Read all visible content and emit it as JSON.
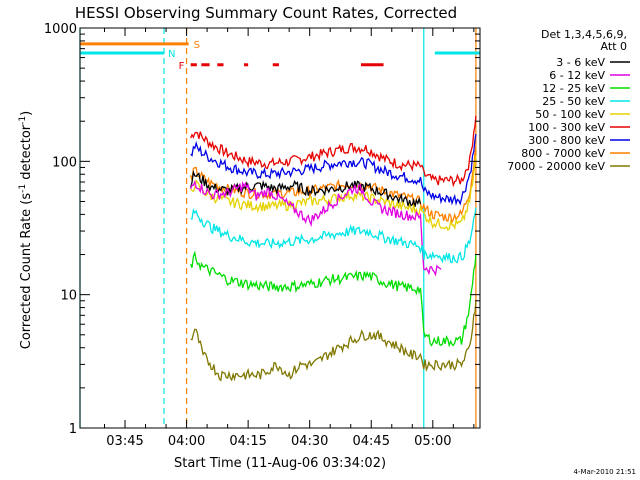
{
  "chart_data": {
    "type": "line",
    "title": "HESSI Observing Summary Count Rates, Corrected",
    "xlabel": "Start Time (11-Aug-06 03:34:02)",
    "ylabel_main": "Corrected Count Rate (s",
    "ylabel_sup1": "-1",
    "ylabel_mid": " detector",
    "ylabel_sup2": "-1",
    "ylabel_end": ")",
    "yscale": "log",
    "ylim": [
      1,
      1000
    ],
    "xlim_minutes": [
      34.03,
      131.5
    ],
    "x_ticks": [
      {
        "m": 45,
        "label": "03:45"
      },
      {
        "m": 60,
        "label": "04:00"
      },
      {
        "m": 75,
        "label": "04:15"
      },
      {
        "m": 90,
        "label": "04:30"
      },
      {
        "m": 105,
        "label": "04:45"
      },
      {
        "m": 120,
        "label": "05:00"
      }
    ],
    "y_ticks": [
      {
        "v": 1,
        "label": "1"
      },
      {
        "v": 10,
        "label": "10"
      },
      {
        "v": 100,
        "label": "100"
      },
      {
        "v": 1000,
        "label": "1000"
      }
    ],
    "legend": {
      "header1": "Det 1,3,4,5,6,9,",
      "header2": "Att 0",
      "entries": [
        {
          "label": "3 - 6 keV",
          "color": "#000000"
        },
        {
          "label": "6 - 12 keV",
          "color": "#e000e0"
        },
        {
          "label": "12 - 25 keV",
          "color": "#00dd00"
        },
        {
          "label": "25 - 50 keV",
          "color": "#00e6e6"
        },
        {
          "label": "50 - 100 keV",
          "color": "#e6d200"
        },
        {
          "label": "100 - 300 keV",
          "color": "#e60000"
        },
        {
          "label": "300 - 800 keV",
          "color": "#0000e6"
        },
        {
          "label": "800 - 7000 keV",
          "color": "#ff8000"
        },
        {
          "label": "7000 - 20000 keV",
          "color": "#807800"
        }
      ]
    },
    "flags": {
      "S": {
        "label": "S",
        "color": "#ff8000",
        "y": 760,
        "x_range": [
          34.03,
          60.5
        ]
      },
      "N": {
        "label": "N",
        "color": "#00e6e6",
        "y": 650,
        "x_range": [
          34.03,
          54.5
        ],
        "x_range2": [
          120.5,
          131.5
        ]
      },
      "F": {
        "label": "F",
        "color": "#e60000",
        "y": 530,
        "segments": [
          [
            61,
            62.5
          ],
          [
            63.6,
            65.6
          ],
          [
            67.5,
            69
          ],
          [
            74,
            75
          ],
          [
            81,
            82.5
          ],
          [
            102.5,
            108
          ]
        ]
      }
    },
    "vlines": [
      {
        "m": 34.03,
        "color": "#00e6e6",
        "style": "solid"
      },
      {
        "m": 54.5,
        "color": "#00e6e6",
        "style": "dash"
      },
      {
        "m": 60,
        "color": "#ff8000",
        "style": "dash"
      },
      {
        "m": 117.8,
        "color": "#00e6e6",
        "style": "solid"
      },
      {
        "m": 130.5,
        "color": "#ff8000",
        "style": "solid"
      }
    ],
    "series": [
      {
        "name": "100 - 300 keV",
        "color": "#e60000",
        "points": [
          [
            61,
            150
          ],
          [
            62,
            170
          ],
          [
            64,
            150
          ],
          [
            66,
            135
          ],
          [
            70,
            115
          ],
          [
            75,
            100
          ],
          [
            80,
            96
          ],
          [
            85,
            100
          ],
          [
            90,
            108
          ],
          [
            95,
            118
          ],
          [
            100,
            128
          ],
          [
            104,
            125
          ],
          [
            108,
            105
          ],
          [
            112,
            95
          ],
          [
            117,
            92
          ],
          [
            117.8,
            80
          ],
          [
            120,
            72
          ],
          [
            124,
            72
          ],
          [
            127,
            72
          ],
          [
            129,
            100
          ],
          [
            130,
            170
          ],
          [
            130.5,
            220
          ]
        ]
      },
      {
        "name": "300 - 800 keV",
        "color": "#0000e6",
        "points": [
          [
            61,
            110
          ],
          [
            62,
            130
          ],
          [
            64,
            115
          ],
          [
            66,
            105
          ],
          [
            70,
            92
          ],
          [
            75,
            82
          ],
          [
            80,
            80
          ],
          [
            85,
            83
          ],
          [
            90,
            88
          ],
          [
            95,
            95
          ],
          [
            100,
            100
          ],
          [
            104,
            97
          ],
          [
            108,
            85
          ],
          [
            112,
            78
          ],
          [
            117,
            72
          ],
          [
            117.8,
            60
          ],
          [
            120,
            55
          ],
          [
            124,
            52
          ],
          [
            127,
            53
          ],
          [
            129,
            80
          ],
          [
            130,
            120
          ],
          [
            130.5,
            160
          ]
        ]
      },
      {
        "name": "800 - 7000 keV",
        "color": "#ff8000",
        "points": [
          [
            61,
            75
          ],
          [
            62,
            85
          ],
          [
            64,
            75
          ],
          [
            66,
            68
          ],
          [
            70,
            62
          ],
          [
            75,
            58
          ],
          [
            80,
            57
          ],
          [
            85,
            58
          ],
          [
            90,
            60
          ],
          [
            95,
            64
          ],
          [
            100,
            68
          ],
          [
            104,
            66
          ],
          [
            108,
            60
          ],
          [
            112,
            55
          ],
          [
            117,
            50
          ],
          [
            117.8,
            45
          ],
          [
            120,
            40
          ],
          [
            124,
            38
          ],
          [
            127,
            40
          ],
          [
            129,
            60
          ],
          [
            130,
            95
          ],
          [
            130.5,
            130
          ]
        ]
      },
      {
        "name": "3 - 6 keV",
        "color": "#000000",
        "points": [
          [
            61,
            70
          ],
          [
            62,
            80
          ],
          [
            64,
            72
          ],
          [
            66,
            64
          ],
          [
            70,
            60
          ],
          [
            74,
            64
          ],
          [
            78,
            66
          ],
          [
            82,
            62
          ],
          [
            86,
            66
          ],
          [
            90,
            60
          ],
          [
            95,
            62
          ],
          [
            100,
            66
          ],
          [
            104,
            64
          ],
          [
            108,
            58
          ],
          [
            112,
            52
          ],
          [
            117,
            48
          ]
        ]
      },
      {
        "name": "50 - 100 keV",
        "color": "#e6d200",
        "points": [
          [
            61,
            58
          ],
          [
            62,
            68
          ],
          [
            64,
            60
          ],
          [
            66,
            55
          ],
          [
            70,
            50
          ],
          [
            75,
            47
          ],
          [
            80,
            46
          ],
          [
            85,
            47
          ],
          [
            90,
            50
          ],
          [
            95,
            52
          ],
          [
            100,
            56
          ],
          [
            104,
            54
          ],
          [
            108,
            50
          ],
          [
            112,
            46
          ],
          [
            117,
            43
          ],
          [
            117.8,
            40
          ],
          [
            120,
            35
          ],
          [
            124,
            33
          ],
          [
            127,
            34
          ],
          [
            129,
            50
          ],
          [
            130,
            80
          ],
          [
            130.5,
            110
          ]
        ]
      },
      {
        "name": "6 - 12 keV",
        "color": "#e000e0",
        "points": [
          [
            61,
            60
          ],
          [
            62,
            70
          ],
          [
            64,
            62
          ],
          [
            66,
            56
          ],
          [
            70,
            58
          ],
          [
            74,
            66
          ],
          [
            77,
            55
          ],
          [
            80,
            60
          ],
          [
            83,
            52
          ],
          [
            86,
            44
          ],
          [
            88,
            40
          ],
          [
            90,
            36
          ],
          [
            93,
            42
          ],
          [
            96,
            50
          ],
          [
            99,
            58
          ],
          [
            101,
            64
          ],
          [
            103,
            60
          ],
          [
            105,
            50
          ],
          [
            107,
            45
          ],
          [
            110,
            42
          ],
          [
            113,
            40
          ],
          [
            117,
            38
          ],
          [
            117.8,
            16
          ],
          [
            120,
            15.5
          ],
          [
            122,
            15.5
          ]
        ]
      },
      {
        "name": "25 - 50 keV",
        "color": "#00e6e6",
        "points": [
          [
            61,
            36
          ],
          [
            62,
            42
          ],
          [
            64,
            36
          ],
          [
            66,
            32
          ],
          [
            70,
            28
          ],
          [
            75,
            25
          ],
          [
            80,
            24
          ],
          [
            85,
            25
          ],
          [
            90,
            26
          ],
          [
            95,
            28
          ],
          [
            100,
            30
          ],
          [
            104,
            30
          ],
          [
            108,
            27
          ],
          [
            112,
            25
          ],
          [
            117,
            23
          ],
          [
            117.8,
            20
          ],
          [
            120,
            20
          ],
          [
            124,
            19
          ],
          [
            127,
            19
          ],
          [
            129,
            25
          ],
          [
            130,
            35
          ],
          [
            130.5,
            45
          ]
        ]
      },
      {
        "name": "12 - 25 keV",
        "color": "#00dd00",
        "points": [
          [
            61,
            16
          ],
          [
            62,
            19
          ],
          [
            64,
            16
          ],
          [
            66,
            15
          ],
          [
            70,
            13
          ],
          [
            75,
            12
          ],
          [
            80,
            11.5
          ],
          [
            85,
            11.5
          ],
          [
            90,
            12
          ],
          [
            95,
            13
          ],
          [
            100,
            13.5
          ],
          [
            104,
            14
          ],
          [
            108,
            12.5
          ],
          [
            112,
            11.5
          ],
          [
            117,
            11
          ],
          [
            117.8,
            5
          ],
          [
            120,
            4.5
          ],
          [
            124,
            4.5
          ],
          [
            127,
            4.5
          ],
          [
            129,
            8
          ],
          [
            130,
            15
          ],
          [
            130.5,
            20
          ]
        ]
      },
      {
        "name": "7000 - 20000 keV",
        "color": "#807800",
        "points": [
          [
            61,
            4.5
          ],
          [
            62,
            5.5
          ],
          [
            63,
            4.5
          ],
          [
            64,
            3.5
          ],
          [
            66,
            3
          ],
          [
            68,
            2.5
          ],
          [
            70,
            2.5
          ],
          [
            74,
            2.5
          ],
          [
            78,
            2.5
          ],
          [
            82,
            3
          ],
          [
            85,
            2.5
          ],
          [
            88,
            3
          ],
          [
            91,
            3
          ],
          [
            94,
            3.5
          ],
          [
            97,
            4
          ],
          [
            100,
            4.5
          ],
          [
            103,
            5
          ],
          [
            106,
            5
          ],
          [
            109,
            4.5
          ],
          [
            112,
            4
          ],
          [
            115,
            3.5
          ],
          [
            117,
            3.5
          ],
          [
            117.8,
            3
          ],
          [
            120,
            3
          ],
          [
            124,
            3
          ],
          [
            127,
            3
          ],
          [
            129,
            4
          ],
          [
            130,
            7
          ],
          [
            130.5,
            9
          ]
        ]
      }
    ],
    "timestamp": "4-Mar-2010 21:51"
  }
}
